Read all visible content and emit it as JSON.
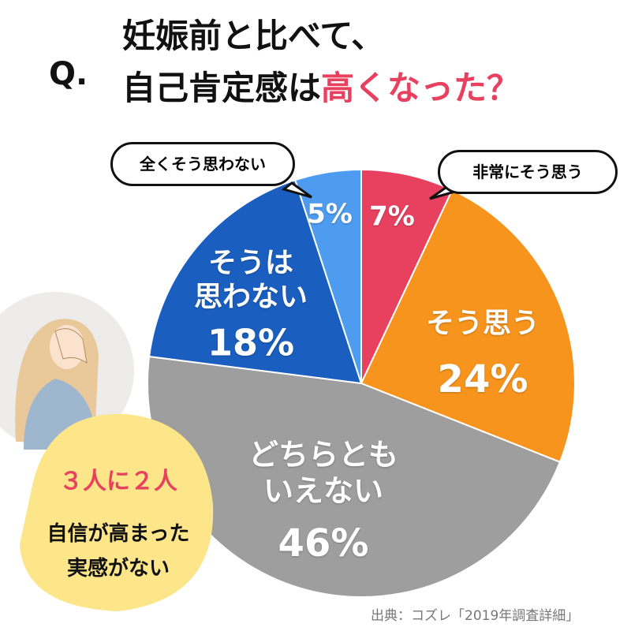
{
  "q_mark": "Q.",
  "chart_data": {
    "type": "pie",
    "title_line1": "妊娠前と比べて、",
    "title_line2": "自己肯定感は",
    "title_highlight": "高くなった？",
    "categories": [
      "非常にそう思う",
      "そう思う",
      "どちらとも\nいえない",
      "そうは\n思わない",
      "全くそう思わない"
    ],
    "values": [
      7,
      24,
      46,
      18,
      5
    ],
    "value_labels": [
      "7%",
      "24%",
      "46%",
      "18%",
      "5%"
    ],
    "colors": [
      "#e8415f",
      "#f7941d",
      "#9e9e9e",
      "#1a5fc0",
      "#4d9cf0"
    ]
  },
  "callout": {
    "headline": "３人に２人",
    "text": "自信が高まった\n実感がない"
  },
  "source": "出典：コズレ「2019年調査詳細」"
}
